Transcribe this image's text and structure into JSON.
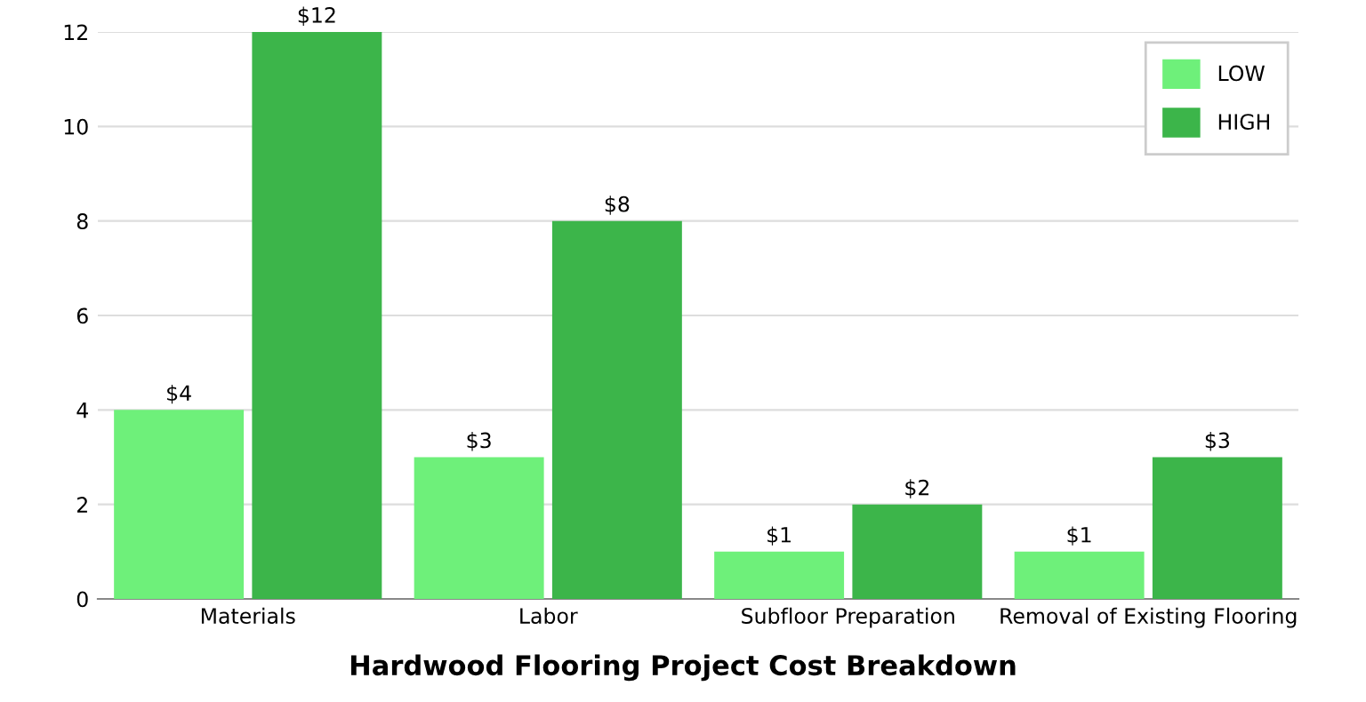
{
  "chart_data": {
    "type": "bar",
    "title": "Hardwood Flooring Project Cost Breakdown",
    "categories": [
      "Materials",
      "Labor",
      "Subfloor Preparation",
      "Removal of Existing Flooring"
    ],
    "series": [
      {
        "name": "LOW",
        "color": "#6ef07a",
        "values": [
          4,
          3,
          1,
          1
        ],
        "value_labels": [
          "$4",
          "$3",
          "$1",
          "$1"
        ]
      },
      {
        "name": "HIGH",
        "color": "#3cb54a",
        "values": [
          12,
          8,
          2,
          3
        ],
        "value_labels": [
          "$12",
          "$8",
          "$2",
          "$3"
        ]
      }
    ],
    "ylim": [
      0,
      12
    ],
    "yticks": [
      0,
      2,
      4,
      6,
      8,
      10,
      12
    ],
    "grid": "y",
    "legend": "top right"
  }
}
